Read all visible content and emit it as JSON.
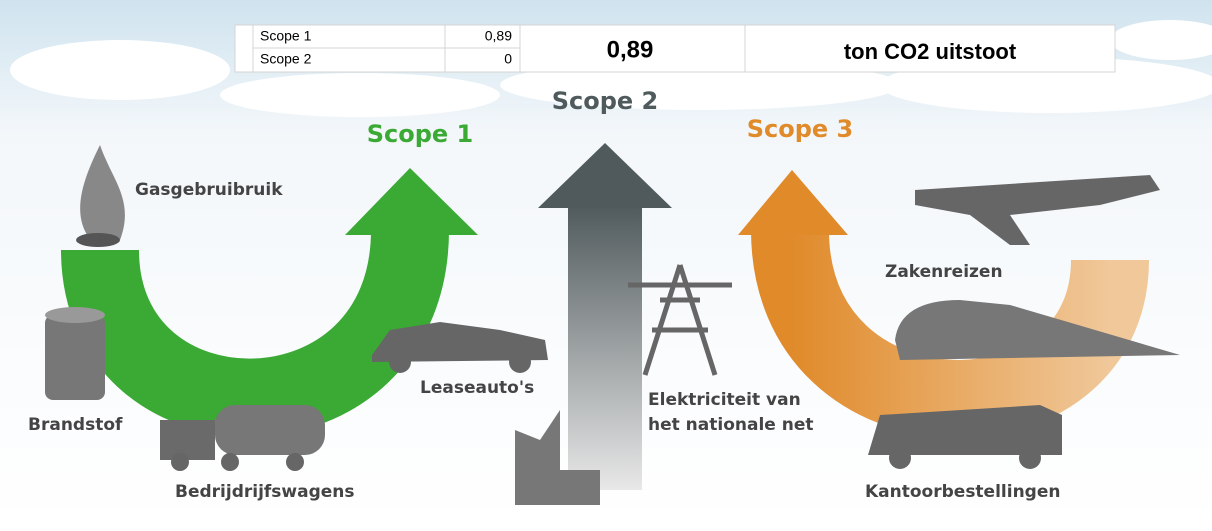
{
  "table": {
    "rows": [
      [
        "Scope 1",
        "0,89"
      ],
      [
        "Scope 2",
        "0"
      ]
    ],
    "total": "0,89",
    "unit": "ton CO2 uitstoot"
  },
  "scopes": {
    "scope1": "Scope 1",
    "scope2": "Scope 2",
    "scope3": "Scope 3"
  },
  "labels": {
    "gas": "Gasgebruibruik",
    "fuel": "Brandstof",
    "trucks": "Bedrijdrijfswagens",
    "lease": "Leaseauto's",
    "electricity": [
      "Elektriciteit van",
      "het nationale net"
    ],
    "travel": "Zakenreizen",
    "office": "Kantoorbestellingen"
  }
}
